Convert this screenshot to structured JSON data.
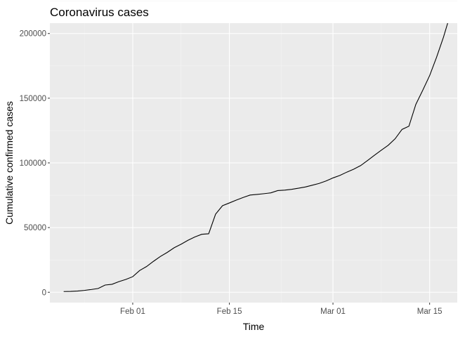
{
  "chart_data": {
    "type": "line",
    "title": "Coronavirus cases",
    "xlabel": "Time",
    "ylabel": "Cumulative confirmed cases",
    "xlim": [
      "2020-01-20",
      "2020-03-19"
    ],
    "ylim": [
      -8000,
      208000
    ],
    "x_ticks": [
      "2020-02-01",
      "2020-02-15",
      "2020-03-01",
      "2020-03-15"
    ],
    "x_tick_labels": [
      "Feb 01",
      "Feb 15",
      "Mar 01",
      "Mar 15"
    ],
    "y_ticks": [
      0,
      50000,
      100000,
      150000,
      200000
    ],
    "y_tick_labels": [
      "0",
      "50000",
      "100000",
      "150000",
      "200000"
    ],
    "grid": true,
    "background": "#ebebeb",
    "line_color": "#000000",
    "series": [
      {
        "x": [
          "2020-01-22",
          "2020-01-23",
          "2020-01-24",
          "2020-01-25",
          "2020-01-26",
          "2020-01-27",
          "2020-01-28",
          "2020-01-29",
          "2020-01-30",
          "2020-01-31",
          "2020-02-01",
          "2020-02-02",
          "2020-02-03",
          "2020-02-04",
          "2020-02-05",
          "2020-02-06",
          "2020-02-07",
          "2020-02-08",
          "2020-02-09",
          "2020-02-10",
          "2020-02-11",
          "2020-02-12",
          "2020-02-13",
          "2020-02-14",
          "2020-02-15",
          "2020-02-16",
          "2020-02-17",
          "2020-02-18",
          "2020-02-19",
          "2020-02-20",
          "2020-02-21",
          "2020-02-22",
          "2020-02-23",
          "2020-02-24",
          "2020-02-25",
          "2020-02-26",
          "2020-02-27",
          "2020-02-28",
          "2020-02-29",
          "2020-03-01",
          "2020-03-02",
          "2020-03-03",
          "2020-03-04",
          "2020-03-05",
          "2020-03-06",
          "2020-03-07",
          "2020-03-08",
          "2020-03-09",
          "2020-03-10",
          "2020-03-11",
          "2020-03-12",
          "2020-03-13",
          "2020-03-14",
          "2020-03-15",
          "2020-03-16",
          "2020-03-17",
          "2020-03-18"
        ],
        "values": [
          555,
          654,
          941,
          1434,
          2118,
          2927,
          5578,
          6166,
          8234,
          9927,
          12038,
          16787,
          19881,
          23892,
          27635,
          30817,
          34391,
          37120,
          40150,
          42762,
          44802,
          45221,
          60368,
          66885,
          69030,
          71224,
          73258,
          75136,
          75639,
          76197,
          76819,
          78572,
          78958,
          79561,
          80406,
          81388,
          82746,
          84112,
          86011,
          88369,
          90306,
          92840,
          95120,
          97886,
          101801,
          105847,
          109821,
          113590,
          118620,
          125875,
          128352,
          145205,
          156101,
          167454,
          181574,
          197102,
          214910
        ]
      }
    ]
  }
}
